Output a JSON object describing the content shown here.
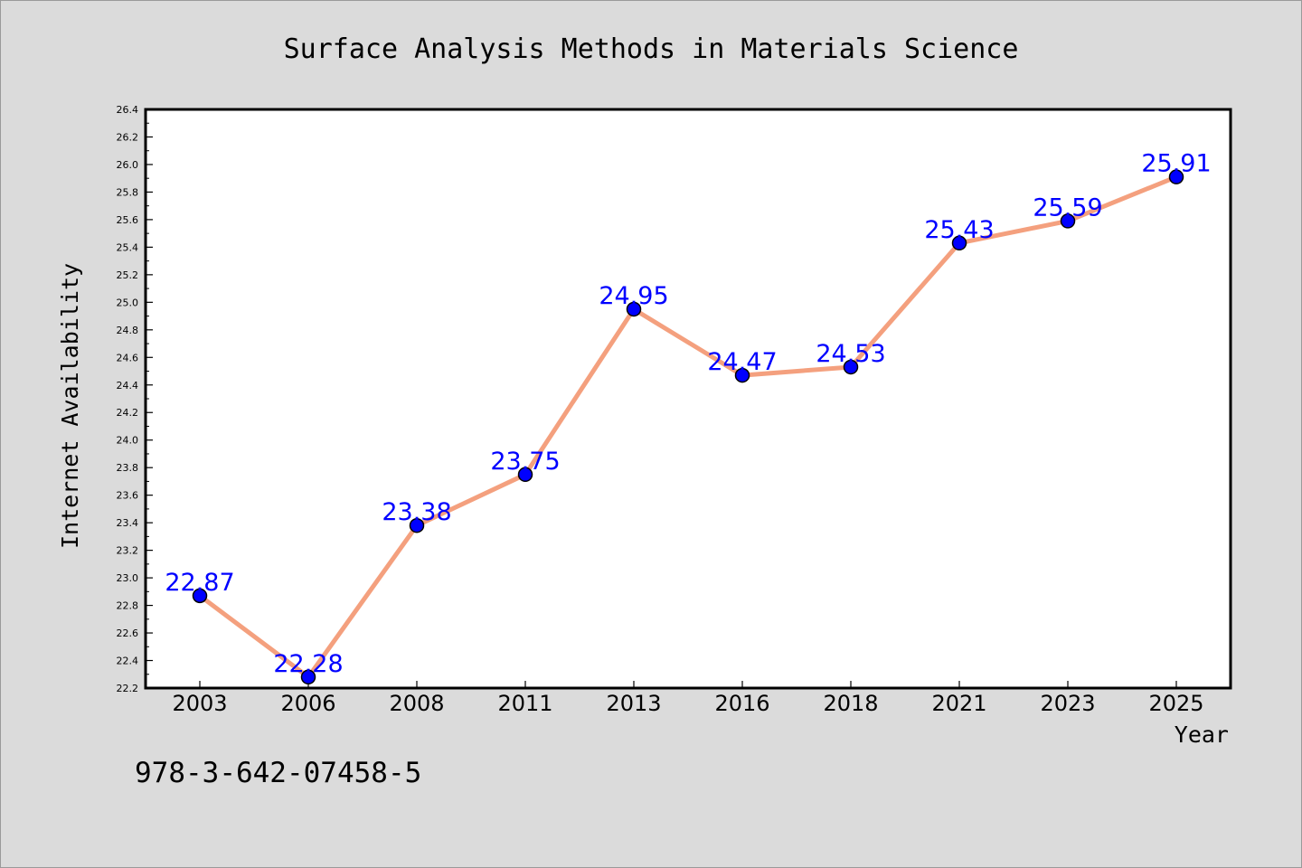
{
  "chart_data": {
    "type": "line",
    "title": "Surface Analysis Methods in Materials Science",
    "xlabel": "Year",
    "ylabel": "Internet Availability",
    "categories": [
      "2003",
      "2006",
      "2008",
      "2011",
      "2013",
      "2016",
      "2018",
      "2021",
      "2023",
      "2025"
    ],
    "series": [
      {
        "values": [
          22.87,
          22.28,
          23.38,
          23.75,
          24.95,
          24.47,
          24.53,
          25.43,
          25.59,
          25.91
        ],
        "data_labels": [
          "22.87",
          "22.28",
          "23.38",
          "23.75",
          "24.95",
          "24.47",
          "24.53",
          "25.43",
          "25.59",
          "25.91"
        ],
        "line_color": "#f4a07e",
        "marker_color": "#0000ff",
        "label_color": "#0000ff"
      }
    ],
    "ylim": [
      22.2,
      26.4
    ],
    "yticks": [
      "22.2",
      "22.4",
      "22.6",
      "22.8",
      "23.0",
      "23.2",
      "23.4",
      "23.6",
      "23.8",
      "24.0",
      "24.2",
      "24.4",
      "24.6",
      "24.8",
      "25.0",
      "25.2",
      "25.4",
      "25.6",
      "25.8",
      "26.0",
      "26.2",
      "26.4"
    ],
    "grid": false,
    "legend": "none"
  },
  "footer": {
    "code": "978-3-642-07458-5"
  },
  "colors": {
    "figure_background": "#dbdbdb",
    "plot_background": "#ffffff",
    "axis": "#000000"
  }
}
